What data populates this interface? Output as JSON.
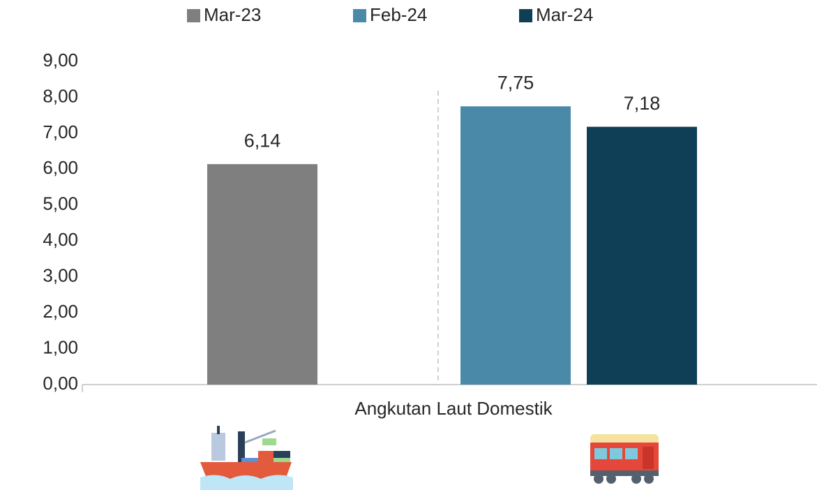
{
  "chart_data": {
    "type": "bar",
    "categories": [
      "Angkutan Laut Domestik"
    ],
    "series": [
      {
        "name": "Mar-23",
        "color": "#7f7f7f",
        "values": [
          6.14
        ],
        "value_labels": [
          "6,14"
        ]
      },
      {
        "name": "Feb-24",
        "color": "#4a8aa8",
        "values": [
          7.75
        ],
        "value_labels": [
          "7,75"
        ]
      },
      {
        "name": "Mar-24",
        "color": "#0f3f57",
        "values": [
          7.18
        ],
        "value_labels": [
          "7,18"
        ]
      }
    ],
    "ylim": [
      0,
      9
    ],
    "yticks": [
      {
        "value": 0,
        "label": "0,00"
      },
      {
        "value": 1,
        "label": "1,00"
      },
      {
        "value": 2,
        "label": "2,00"
      },
      {
        "value": 3,
        "label": "3,00"
      },
      {
        "value": 4,
        "label": "4,00"
      },
      {
        "value": 5,
        "label": "5,00"
      },
      {
        "value": 6,
        "label": "6,00"
      },
      {
        "value": 7,
        "label": "7,00"
      },
      {
        "value": 8,
        "label": "8,00"
      },
      {
        "value": 9,
        "label": "9,00"
      }
    ],
    "grid": false,
    "legend": "top"
  }
}
